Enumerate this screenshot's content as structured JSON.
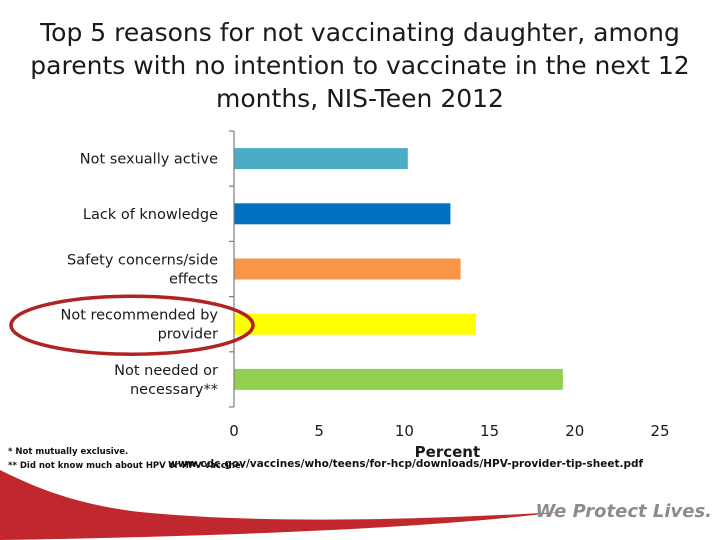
{
  "title": "Top 5 reasons for not vaccinating daughter, among parents with no intention to vaccinate in the next 12 months, NIS-Teen 2012",
  "chart_data": {
    "type": "bar",
    "orientation": "horizontal",
    "categories": [
      [
        "Not sexually active"
      ],
      [
        "Lack of knowledge"
      ],
      [
        "Safety concerns/side",
        "effects"
      ],
      [
        "Not recommended by",
        "provider"
      ],
      [
        "Not needed or",
        "necessary**"
      ]
    ],
    "values": [
      10.2,
      12.7,
      13.3,
      14.2,
      19.3
    ],
    "colors": [
      "#4bacc6",
      "#0070c0",
      "#f79646",
      "#ffff00",
      "#92d050"
    ],
    "xlabel": "Percent",
    "ylabel": "",
    "xlim": [
      0,
      25
    ],
    "xticks": [
      "0",
      "5",
      "10",
      "15",
      "20",
      "25"
    ],
    "grid": false,
    "highlighted_category_index": 3,
    "highlight_color": "#b22222"
  },
  "footnotes": [
    "* Not mutually exclusive.",
    "** Did not know much about HPV or HPV vaccine."
  ],
  "source_url": "www.cdc.gov/vaccines/who/teens/for-hcp/downloads/HPV-provider-tip-sheet.pdf",
  "tagline": "We Protect Lives.",
  "brand_color": "#c0282d"
}
